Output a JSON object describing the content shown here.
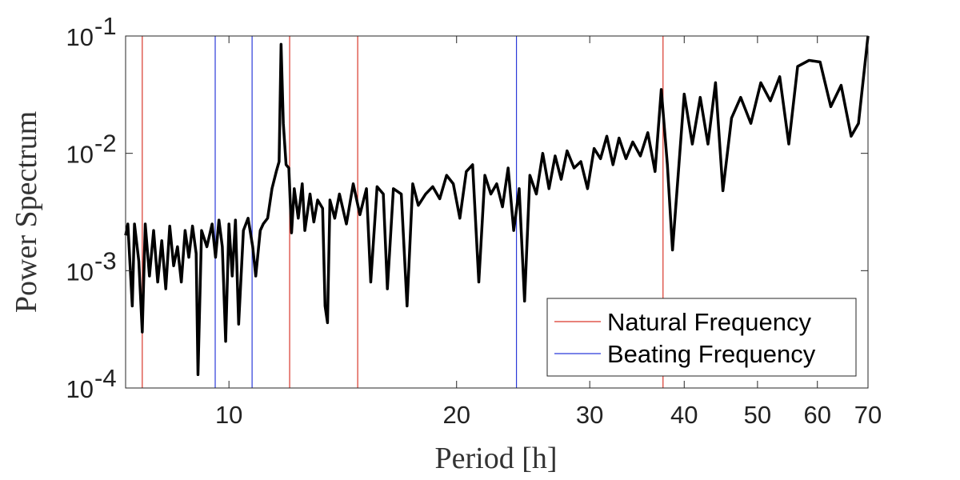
{
  "chart_data": {
    "type": "line",
    "x_label": "Period [h]",
    "y_label": "Power Spectrum",
    "xscale": "log",
    "yscale": "log",
    "xlim": [
      7.3,
      70
    ],
    "ylim": [
      0.0001,
      0.1
    ],
    "xticks": [
      10,
      20,
      30,
      40,
      50,
      60,
      70
    ],
    "yticks": [
      {
        "value": 0.0001,
        "label": "10",
        "exponent": "-4"
      },
      {
        "value": 0.001,
        "label": "10",
        "exponent": "-3"
      },
      {
        "value": 0.01,
        "label": "10",
        "exponent": "-2"
      },
      {
        "value": 0.1,
        "label": "10",
        "exponent": "-1"
      }
    ],
    "legend_position": "lower right",
    "series": [
      {
        "color": "#000000",
        "x": [
          7.3,
          7.35,
          7.45,
          7.5,
          7.6,
          7.68,
          7.75,
          7.85,
          7.95,
          8.05,
          8.15,
          8.25,
          8.35,
          8.45,
          8.55,
          8.65,
          8.75,
          8.85,
          8.95,
          9.05,
          9.1,
          9.2,
          9.35,
          9.5,
          9.6,
          9.7,
          9.8,
          9.9,
          10.0,
          10.1,
          10.2,
          10.3,
          10.45,
          10.6,
          10.75,
          10.85,
          11.0,
          11.1,
          11.25,
          11.4,
          11.55,
          11.65,
          11.72,
          11.8,
          11.9,
          12.0,
          12.1,
          12.2,
          12.35,
          12.5,
          12.6,
          12.8,
          12.95,
          13.1,
          13.3,
          13.4,
          13.5,
          13.6,
          13.8,
          14.0,
          14.3,
          14.6,
          14.9,
          15.2,
          15.4,
          15.7,
          16.0,
          16.2,
          16.5,
          16.9,
          17.2,
          17.5,
          17.8,
          18.2,
          18.6,
          19.0,
          19.4,
          19.8,
          20.2,
          20.6,
          21.0,
          21.4,
          21.8,
          22.2,
          22.6,
          23.0,
          23.4,
          23.8,
          24.2,
          24.6,
          25.0,
          25.5,
          26.0,
          26.5,
          27.0,
          27.5,
          28.0,
          28.6,
          29.2,
          29.8,
          30.4,
          31.0,
          31.6,
          32.2,
          32.8,
          33.5,
          34.2,
          35.0,
          35.8,
          36.6,
          37.3,
          38.0,
          38.6,
          39.3,
          40.0,
          41.0,
          42.0,
          43.0,
          44.0,
          45.0,
          46.2,
          47.5,
          49.0,
          50.5,
          52.0,
          53.5,
          55.0,
          56.5,
          58.5,
          60.5,
          62.5,
          64.5,
          66.5,
          68.0,
          70
        ],
        "values": [
          0.002,
          0.0025,
          0.0005,
          0.0025,
          0.0012,
          0.0003,
          0.0025,
          0.0009,
          0.0022,
          0.0008,
          0.0018,
          0.0007,
          0.0024,
          0.0011,
          0.0016,
          0.0008,
          0.0022,
          0.0013,
          0.0024,
          0.0014,
          0.00013,
          0.0022,
          0.0016,
          0.0025,
          0.0013,
          0.0027,
          0.0016,
          0.00025,
          0.0025,
          0.0009,
          0.0027,
          0.00035,
          0.0022,
          0.0028,
          0.0016,
          0.0009,
          0.0022,
          0.0025,
          0.0028,
          0.005,
          0.007,
          0.0085,
          0.085,
          0.018,
          0.008,
          0.0075,
          0.0021,
          0.005,
          0.0028,
          0.0055,
          0.0022,
          0.0045,
          0.0026,
          0.004,
          0.0034,
          0.0005,
          0.00036,
          0.004,
          0.0028,
          0.0045,
          0.0025,
          0.0055,
          0.003,
          0.005,
          0.0008,
          0.0052,
          0.0045,
          0.0007,
          0.005,
          0.0045,
          0.0005,
          0.0055,
          0.0036,
          0.0045,
          0.0052,
          0.0041,
          0.0065,
          0.0055,
          0.0028,
          0.007,
          0.008,
          0.0008,
          0.0065,
          0.0045,
          0.0055,
          0.0035,
          0.0075,
          0.0022,
          0.005,
          0.00055,
          0.0065,
          0.0045,
          0.01,
          0.005,
          0.0095,
          0.006,
          0.0105,
          0.0075,
          0.0085,
          0.005,
          0.011,
          0.009,
          0.014,
          0.008,
          0.0135,
          0.009,
          0.0125,
          0.0095,
          0.015,
          0.007,
          0.035,
          0.008,
          0.0015,
          0.007,
          0.032,
          0.012,
          0.03,
          0.012,
          0.04,
          0.0048,
          0.02,
          0.03,
          0.018,
          0.04,
          0.028,
          0.045,
          0.012,
          0.055,
          0.062,
          0.06,
          0.025,
          0.038,
          0.014,
          0.018,
          0.1
        ]
      }
    ],
    "vlines": [
      {
        "name": "Natural Frequency",
        "color": "#d9372b",
        "x": [
          7.68,
          12.03,
          14.8,
          37.5
        ]
      },
      {
        "name": "Beating Frequency",
        "color": "#2b3bd9",
        "x": [
          9.59,
          10.73,
          24.0
        ]
      }
    ]
  }
}
